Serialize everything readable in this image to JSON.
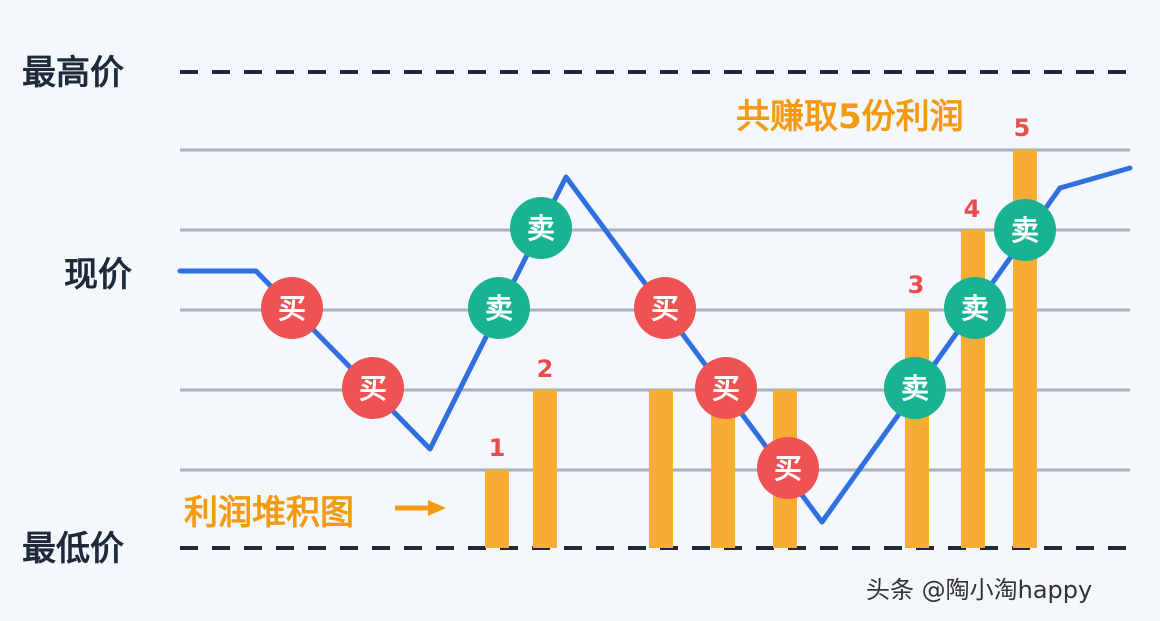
{
  "labels": {
    "highest": "最高价",
    "current": "现价",
    "lowest": "最低价"
  },
  "profit_title": "共赚取5份利润",
  "stack_label": "利润堆积图",
  "bar_numbers": [
    "1",
    "2",
    "3",
    "4",
    "5"
  ],
  "marker_text": {
    "buy": "买",
    "sell": "卖"
  },
  "watermark": "头条 @陶小淘happy",
  "colors": {
    "background": "#f4f7fb",
    "price_line": "#2f6fe0",
    "buy": "#ee5253",
    "sell": "#19b394",
    "bar": "#f7ad33",
    "accent_text": "#f39a12",
    "number": "#e84c4c",
    "grid": "#a9afbd",
    "dashed": "#1f2b3d"
  }
}
